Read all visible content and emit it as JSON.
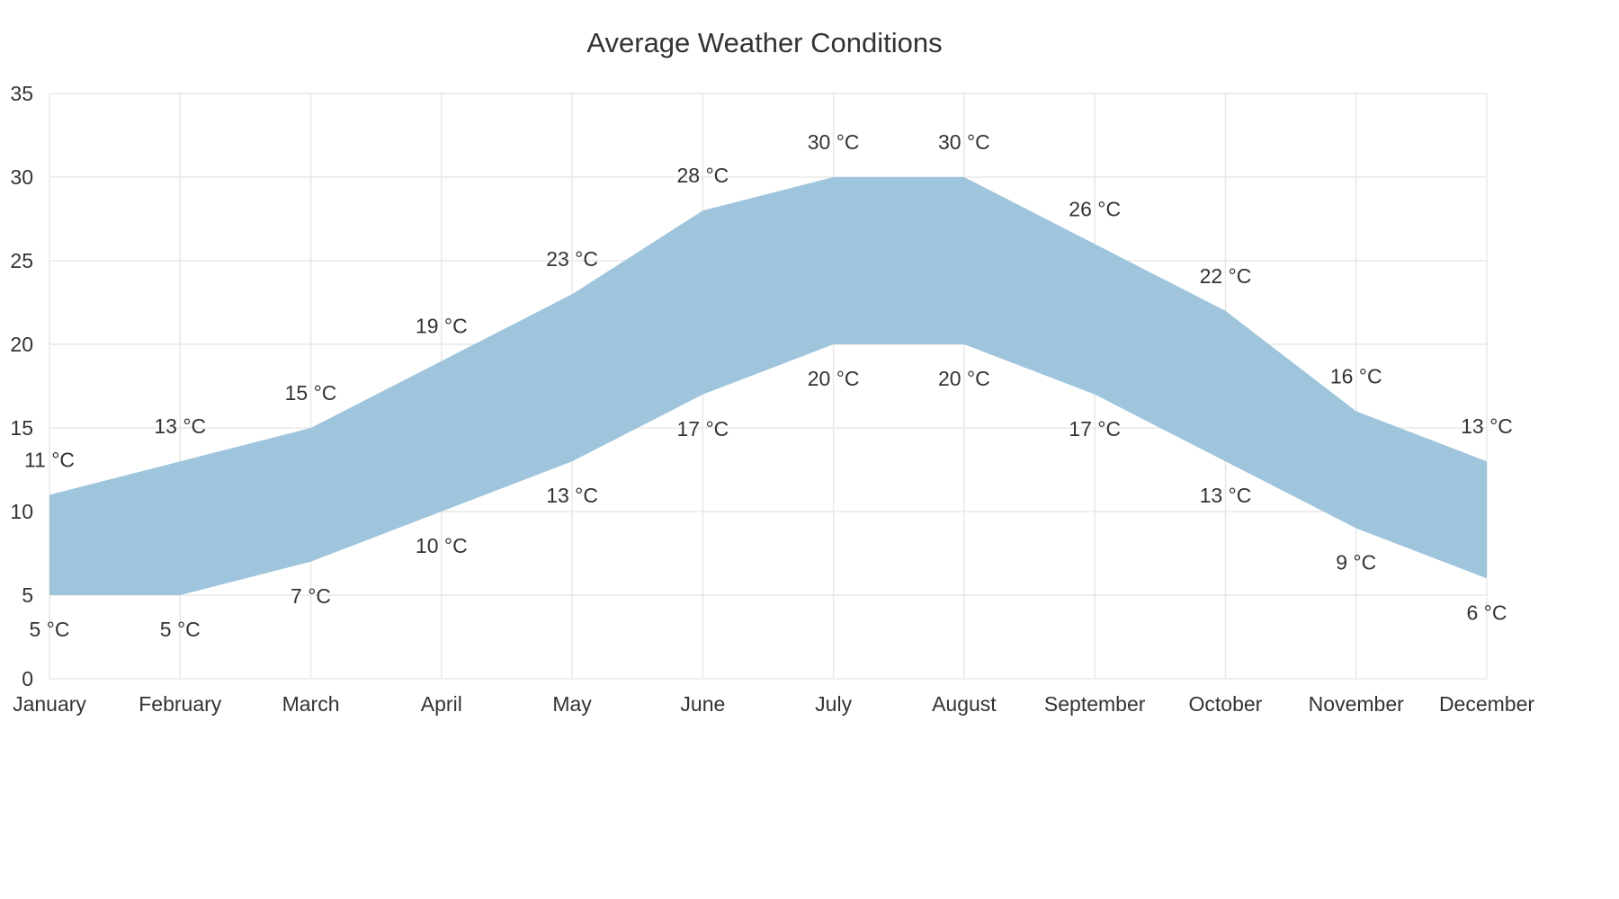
{
  "chart_data": {
    "type": "area",
    "title": "Average Weather Conditions",
    "xlabel": "",
    "ylabel": "",
    "categories": [
      "January",
      "February",
      "March",
      "April",
      "May",
      "June",
      "July",
      "August",
      "September",
      "October",
      "November",
      "December"
    ],
    "series": [
      {
        "values": [
          11,
          13,
          15,
          19,
          23,
          28,
          30,
          30,
          26,
          22,
          16,
          13
        ]
      },
      {
        "values": [
          5,
          5,
          7,
          10,
          13,
          17,
          20,
          20,
          17,
          13,
          9,
          6
        ]
      }
    ],
    "data_label_suffix": " °C",
    "ylim": [
      0,
      35
    ],
    "yticks": [
      0,
      5,
      10,
      15,
      20,
      25,
      30,
      35
    ],
    "grid": true,
    "legend": "none",
    "fill_color": "#9fc5dc",
    "grid_color": "#e8e8e8",
    "text_color": "#333333"
  }
}
